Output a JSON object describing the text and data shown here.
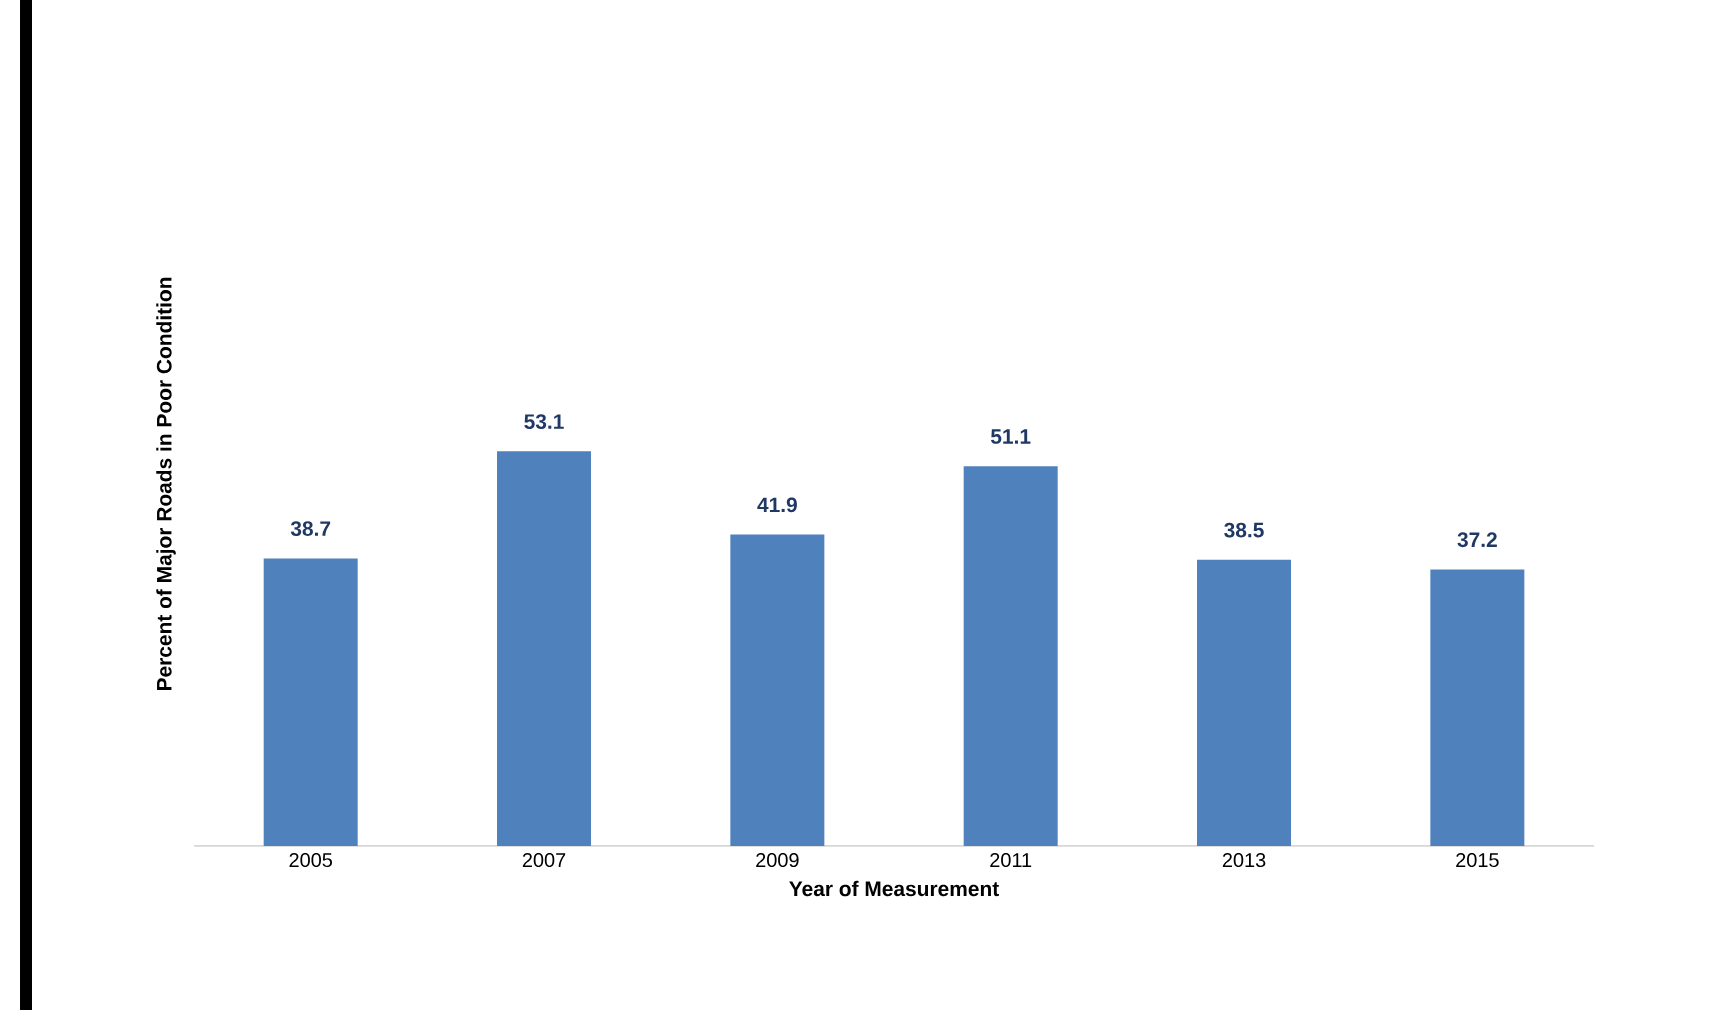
{
  "chart_data": {
    "type": "bar",
    "xlabel": "Year of Measurement",
    "ylabel": "Percent of Major Roads in Poor Condition",
    "categories": [
      "2005",
      "2007",
      "2009",
      "2011",
      "2013",
      "2015"
    ],
    "values": [
      38.7,
      53.1,
      41.9,
      51.1,
      38.5,
      37.2
    ],
    "color": "#4f81bd",
    "data_labels": true
  }
}
